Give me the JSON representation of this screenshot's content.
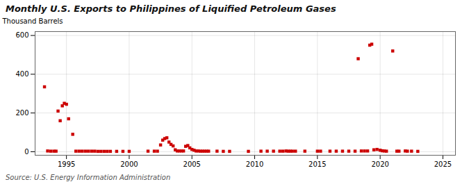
{
  "chart_data": {
    "type": "scatter",
    "title": "Monthly U.S. Exports to Philippines of Liquified Petroleum Gases",
    "ylabel": "Thousand Barrels",
    "source": "Source: U.S. Energy Information Administration",
    "color": "#cc0000",
    "marker": "square",
    "grid": true,
    "xlim": [
      1992.5,
      2026
    ],
    "ylim": [
      -18,
      620
    ],
    "xticks": [
      1995,
      2000,
      2005,
      2010,
      2015,
      2020,
      2025
    ],
    "yticks": [
      0,
      200,
      400,
      600
    ],
    "x": [
      1993.25,
      1994.33,
      1994.5,
      1994.67,
      1994.83,
      1995.0,
      1995.17,
      1995.5,
      1993.5,
      1993.75,
      1994.0,
      1994.17,
      1995.75,
      1996.0,
      1996.25,
      1996.5,
      1996.75,
      1997.0,
      1997.25,
      1997.5,
      1997.75,
      1998.0,
      1998.25,
      1998.5,
      1999.0,
      1999.5,
      2000.0,
      2001.5,
      2002.0,
      2002.25,
      2002.5,
      2002.67,
      2002.83,
      2003.0,
      2003.17,
      2003.33,
      2003.5,
      2003.67,
      2003.83,
      2004.0,
      2004.17,
      2004.33,
      2004.5,
      2004.67,
      2004.83,
      2005.0,
      2005.17,
      2005.33,
      2005.5,
      2005.67,
      2005.83,
      2006.0,
      2006.17,
      2006.33,
      2007.0,
      2007.5,
      2008.0,
      2009.5,
      2010.5,
      2011.0,
      2011.5,
      2012.0,
      2012.25,
      2012.5,
      2012.67,
      2012.83,
      2013.0,
      2013.25,
      2014.0,
      2015.0,
      2015.25,
      2016.0,
      2016.5,
      2017.0,
      2017.5,
      2018.0,
      2018.25,
      2018.5,
      2018.75,
      2019.0,
      2019.17,
      2019.33,
      2019.5,
      2019.75,
      2020.0,
      2020.17,
      2020.33,
      2020.5,
      2021.0,
      2021.33,
      2021.5,
      2022.0,
      2022.17,
      2022.5,
      2023.0
    ],
    "values": [
      335,
      210,
      160,
      237,
      250,
      245,
      170,
      90,
      4,
      3,
      3,
      3,
      3,
      3,
      3,
      3,
      3,
      3,
      3,
      2,
      2,
      2,
      2,
      2,
      2,
      2,
      2,
      3,
      3,
      3,
      35,
      60,
      68,
      72,
      50,
      38,
      30,
      10,
      4,
      4,
      4,
      4,
      28,
      32,
      20,
      12,
      8,
      4,
      4,
      3,
      3,
      3,
      3,
      3,
      3,
      2,
      2,
      2,
      3,
      3,
      3,
      3,
      3,
      4,
      3,
      3,
      3,
      3,
      3,
      3,
      3,
      3,
      3,
      3,
      3,
      3,
      480,
      4,
      4,
      4,
      550,
      555,
      10,
      12,
      8,
      5,
      4,
      3,
      520,
      3,
      3,
      4,
      3,
      3,
      2
    ]
  }
}
